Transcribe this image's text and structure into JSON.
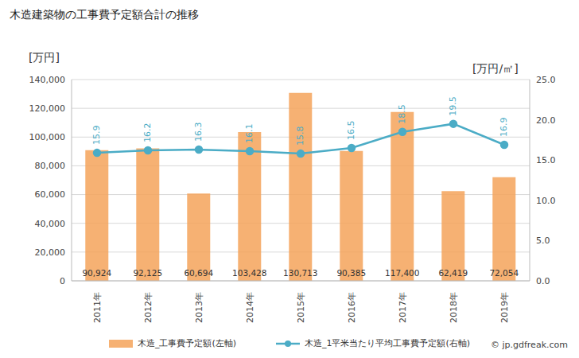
{
  "chart_data": {
    "type": "bar",
    "title": "木造建築物の工事費予定額合計の推移",
    "categories": [
      "2011年",
      "2012年",
      "2013年",
      "2014年",
      "2015年",
      "2016年",
      "2017年",
      "2018年",
      "2019年"
    ],
    "series": [
      {
        "name": "木造_工事費予定額(左軸)",
        "type": "bar",
        "color": "#f5a35b",
        "values": [
          90924,
          92125,
          60694,
          103428,
          130713,
          90385,
          117400,
          62419,
          72054
        ],
        "value_labels": [
          "90,924",
          "92,125",
          "60,694",
          "103,428",
          "130,713",
          "90,385",
          "117,400",
          "62,419",
          "72,054"
        ],
        "data_labels": true
      },
      {
        "name": "木造_1平米当たり平均工事費予定額(右軸)",
        "type": "line",
        "axis": "y2",
        "color": "#4bacc6",
        "marker": "circle",
        "values": [
          15.9,
          16.2,
          16.3,
          16.1,
          15.8,
          16.5,
          18.5,
          19.5,
          16.9
        ],
        "data_labels": true
      }
    ],
    "y_label": "[万円]",
    "y2_label": "[万円/㎡]",
    "ylim": [
      0,
      140000
    ],
    "yticks": [
      0,
      {
        "value": 20000,
        "label": "20,000"
      },
      {
        "value": 40000,
        "label": "40,000"
      },
      {
        "value": 60000,
        "label": "60,000"
      },
      {
        "value": 80000,
        "label": "80,000"
      },
      {
        "value": 100000,
        "label": "100,000"
      },
      {
        "value": 120000,
        "label": "120,000"
      },
      {
        "value": 140000,
        "label": "140,000"
      }
    ],
    "y2lim": [
      0,
      25
    ],
    "y2ticks": [
      {
        "value": 0,
        "label": "0.0"
      },
      {
        "value": 5,
        "label": "5.0"
      },
      {
        "value": 10,
        "label": "10.0"
      },
      {
        "value": 15,
        "label": "15.0"
      },
      {
        "value": 20,
        "label": "20.0"
      },
      {
        "value": 25,
        "label": "25.0"
      }
    ],
    "grid": true,
    "legend": "bottom",
    "annotations": [
      "© jp.gdfreak.com"
    ]
  }
}
